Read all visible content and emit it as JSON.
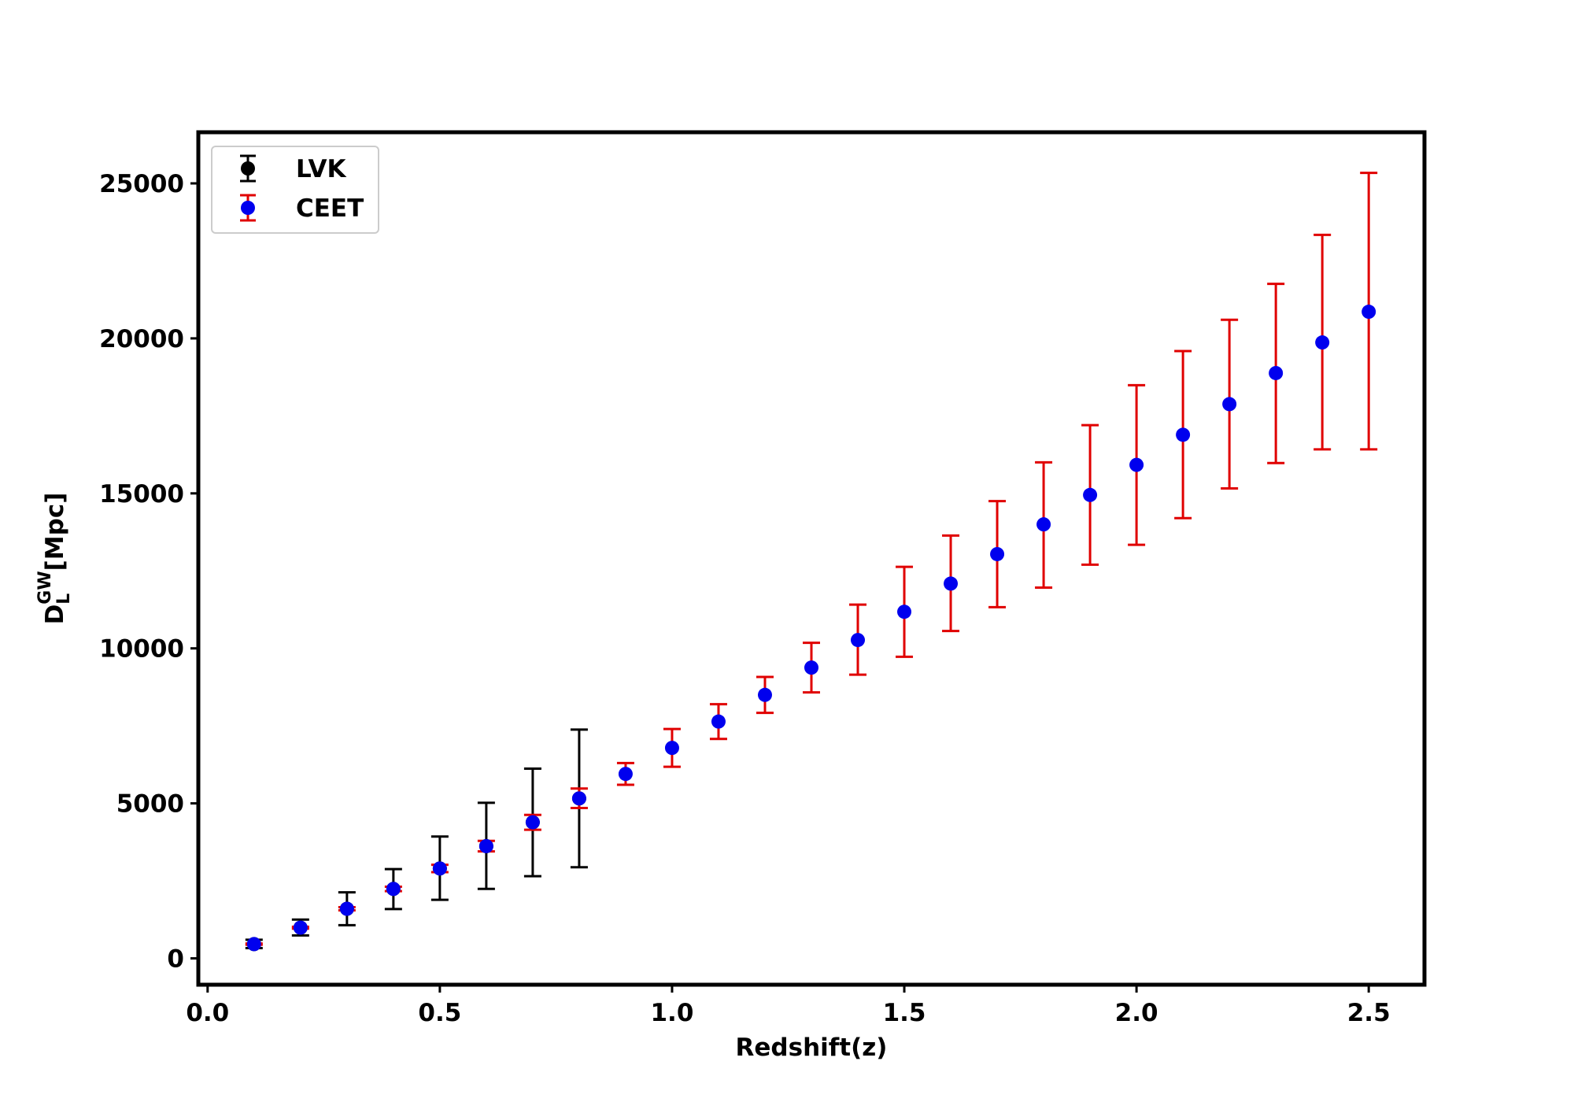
{
  "chart_data": {
    "type": "scatter",
    "xlabel": "Redshift(z)",
    "ylabel": {
      "main": "D",
      "sub": "L",
      "sup": "GW",
      "unit": "[Mpc]"
    },
    "xlim": [
      -0.02,
      2.62
    ],
    "ylim": [
      -850,
      26650
    ],
    "xticks": [
      0.0,
      0.5,
      1.0,
      1.5,
      2.0,
      2.5
    ],
    "xtick_labels": [
      "0.0",
      "0.5",
      "1.0",
      "1.5",
      "2.0",
      "2.5"
    ],
    "yticks": [
      0,
      5000,
      10000,
      15000,
      20000,
      25000
    ],
    "ytick_labels": [
      "0",
      "5000",
      "10000",
      "15000",
      "20000",
      "25000"
    ],
    "legend_position": "top-left",
    "series": [
      {
        "name": "LVK",
        "marker_color": "#000000",
        "errorbar_color": "#000000",
        "points": [
          {
            "x": 0.1,
            "y": 460,
            "lo": 330,
            "hi": 600
          },
          {
            "x": 0.2,
            "y": 990,
            "lo": 740,
            "hi": 1250
          },
          {
            "x": 0.3,
            "y": 1600,
            "lo": 1070,
            "hi": 2130
          },
          {
            "x": 0.4,
            "y": 2240,
            "lo": 1590,
            "hi": 2880
          },
          {
            "x": 0.5,
            "y": 2900,
            "lo": 1890,
            "hi": 3930
          },
          {
            "x": 0.6,
            "y": 3620,
            "lo": 2240,
            "hi": 5020
          },
          {
            "x": 0.7,
            "y": 4390,
            "lo": 2650,
            "hi": 6120
          },
          {
            "x": 0.8,
            "y": 5160,
            "lo": 2940,
            "hi": 7380
          }
        ]
      },
      {
        "name": "CEET",
        "marker_color": "#0000ee",
        "errorbar_color": "#e00000",
        "points": [
          {
            "x": 0.1,
            "y": 460,
            "lo": 440,
            "hi": 480
          },
          {
            "x": 0.2,
            "y": 990,
            "lo": 960,
            "hi": 1020
          },
          {
            "x": 0.3,
            "y": 1600,
            "lo": 1550,
            "hi": 1650
          },
          {
            "x": 0.4,
            "y": 2240,
            "lo": 2170,
            "hi": 2310
          },
          {
            "x": 0.5,
            "y": 2900,
            "lo": 2780,
            "hi": 3020
          },
          {
            "x": 0.6,
            "y": 3620,
            "lo": 3450,
            "hi": 3790
          },
          {
            "x": 0.7,
            "y": 4390,
            "lo": 4150,
            "hi": 4630
          },
          {
            "x": 0.8,
            "y": 5160,
            "lo": 4850,
            "hi": 5480
          },
          {
            "x": 0.9,
            "y": 5950,
            "lo": 5600,
            "hi": 6300
          },
          {
            "x": 1.0,
            "y": 6790,
            "lo": 6180,
            "hi": 7400
          },
          {
            "x": 1.1,
            "y": 7640,
            "lo": 7080,
            "hi": 8200
          },
          {
            "x": 1.2,
            "y": 8500,
            "lo": 7920,
            "hi": 9080
          },
          {
            "x": 1.3,
            "y": 9380,
            "lo": 8580,
            "hi": 10180
          },
          {
            "x": 1.4,
            "y": 10270,
            "lo": 9150,
            "hi": 11410
          },
          {
            "x": 1.5,
            "y": 11180,
            "lo": 9730,
            "hi": 12630
          },
          {
            "x": 1.6,
            "y": 12090,
            "lo": 10560,
            "hi": 13640
          },
          {
            "x": 1.7,
            "y": 13040,
            "lo": 11330,
            "hi": 14750
          },
          {
            "x": 1.8,
            "y": 14000,
            "lo": 11960,
            "hi": 16000
          },
          {
            "x": 1.9,
            "y": 14950,
            "lo": 12700,
            "hi": 17200
          },
          {
            "x": 2.0,
            "y": 15920,
            "lo": 13340,
            "hi": 18490
          },
          {
            "x": 2.1,
            "y": 16890,
            "lo": 14200,
            "hi": 19590
          },
          {
            "x": 2.2,
            "y": 17880,
            "lo": 15160,
            "hi": 20600
          },
          {
            "x": 2.3,
            "y": 18880,
            "lo": 15980,
            "hi": 21760
          },
          {
            "x": 2.4,
            "y": 19870,
            "lo": 16420,
            "hi": 23340
          },
          {
            "x": 2.5,
            "y": 20860,
            "lo": 16420,
            "hi": 25340
          }
        ]
      }
    ]
  }
}
